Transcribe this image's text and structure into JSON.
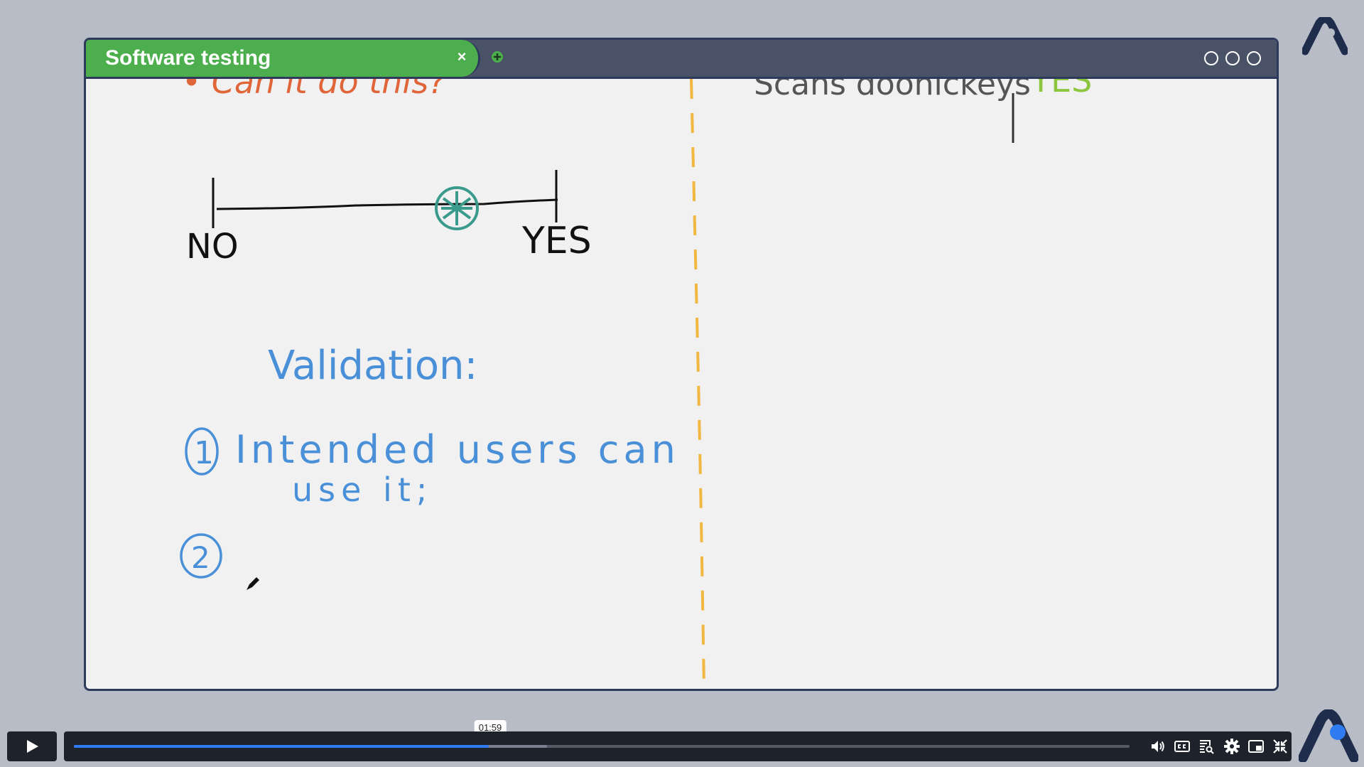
{
  "window": {
    "tab_title": "Software testing",
    "close_glyph": "×"
  },
  "notes": {
    "left_top_cut": "• Can it do this?",
    "scale_no": "NO",
    "scale_yes": "YES",
    "heading": "Validation:",
    "item1_number": "1",
    "item1_line1": "Intended users can",
    "item1_line2": "use it;",
    "item2_number": "2",
    "right_top_cut": "Scans doohickeys",
    "right_top_value": "YES"
  },
  "player": {
    "time_tooltip": "01:59",
    "progress_fraction": 0.393,
    "buffered_fraction": 0.448
  },
  "colors": {
    "tab_green": "#4cae4c",
    "titlebar": "#495266",
    "ink_blue": "#4a90d9",
    "ink_teal": "#3a9a8c",
    "ink_orange": "#e0663a",
    "ink_yellow": "#f2b740",
    "ink_green": "#8cc63f"
  }
}
